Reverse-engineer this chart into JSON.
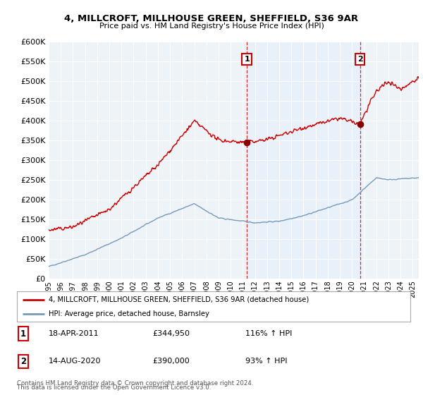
{
  "title": "4, MILLCROFT, MILLHOUSE GREEN, SHEFFIELD, S36 9AR",
  "subtitle": "Price paid vs. HM Land Registry's House Price Index (HPI)",
  "legend_line1": "4, MILLCROFT, MILLHOUSE GREEN, SHEFFIELD, S36 9AR (detached house)",
  "legend_line2": "HPI: Average price, detached house, Barnsley",
  "sale1_date": "18-APR-2011",
  "sale1_price": 344950,
  "sale1_hpi_pct": "116% ↑ HPI",
  "sale2_date": "14-AUG-2020",
  "sale2_price": 390000,
  "sale2_hpi_pct": "93% ↑ HPI",
  "footer_line1": "Contains HM Land Registry data © Crown copyright and database right 2024.",
  "footer_line2": "This data is licensed under the Open Government Licence v3.0.",
  "ylim": [
    0,
    600000
  ],
  "xmin": 1995.0,
  "xmax": 2025.5,
  "red_color": "#cc0000",
  "blue_color": "#7799bb",
  "shade_color": "#ddeeff",
  "vline_color": "#cc0000",
  "bg_color": "#ffffff",
  "plot_bg_color": "#eef3f8"
}
